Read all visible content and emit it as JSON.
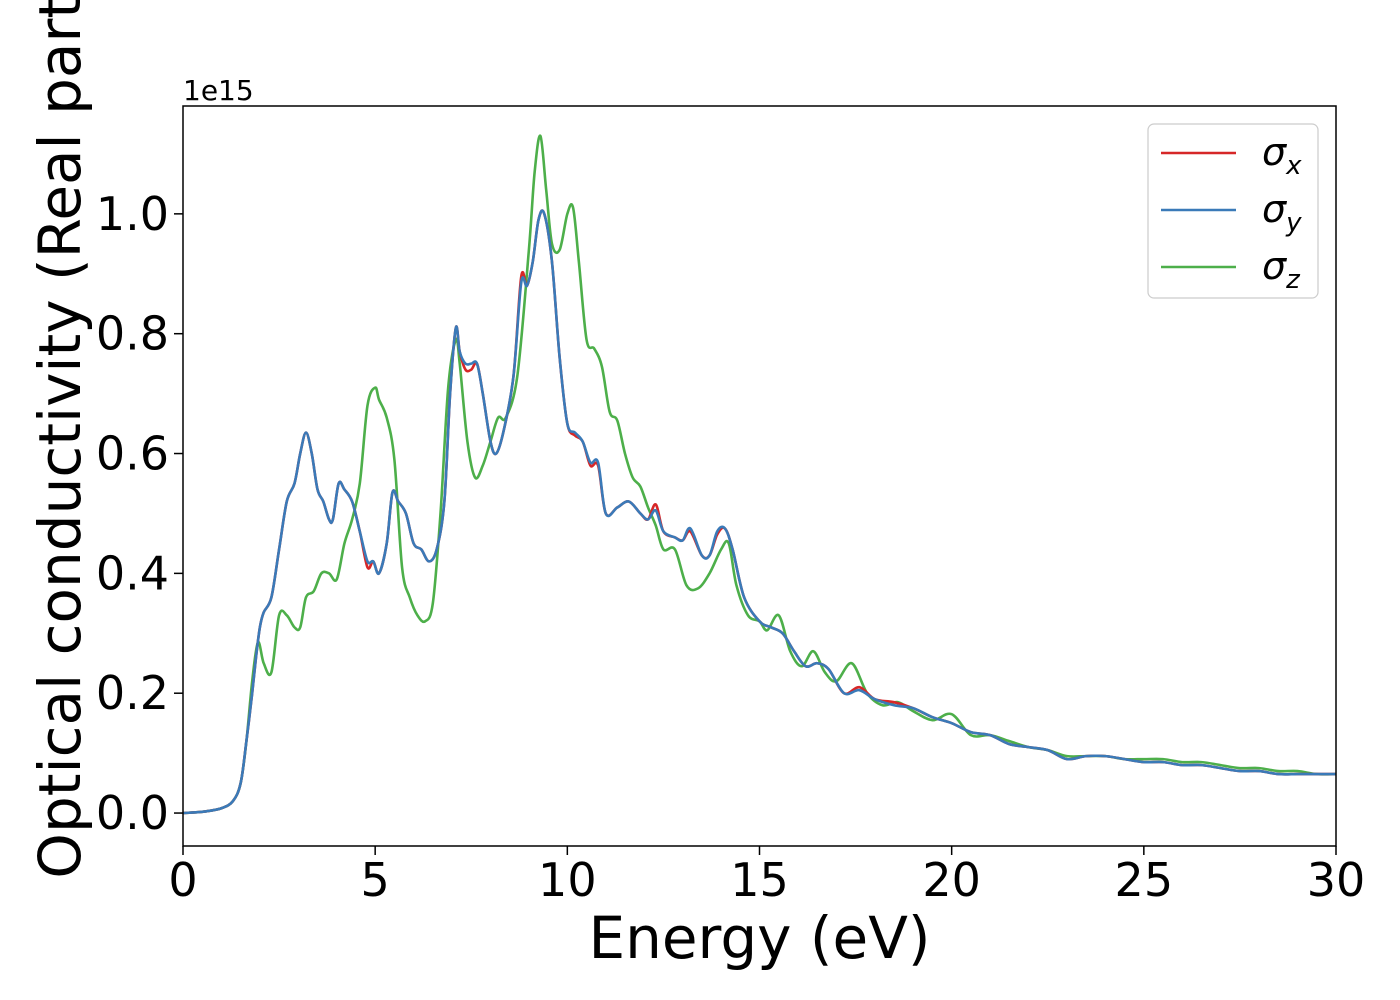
{
  "chart_data": {
    "type": "line",
    "title": "",
    "xlabel": "Energy (eV)",
    "ylabel": "Optical conductivity (Real part)",
    "y_offset_label": "1e15",
    "y_scale_factor": 1000000000000000.0,
    "xlim": [
      0,
      30
    ],
    "ylim": [
      -0.055,
      1.18
    ],
    "xticks": [
      0,
      5,
      10,
      15,
      20,
      25,
      30
    ],
    "xtick_labels": [
      "0",
      "5",
      "10",
      "15",
      "20",
      "25",
      "30"
    ],
    "yticks": [
      0.0,
      0.2,
      0.4,
      0.6,
      0.8,
      1.0
    ],
    "ytick_labels": [
      "0.0",
      "0.2",
      "0.4",
      "0.6",
      "0.8",
      "1.0"
    ],
    "grid": false,
    "legend_position": "top-right",
    "series": [
      {
        "name": "σx",
        "symbol": "σ",
        "subscript": "x",
        "color": "#d62728",
        "x": [
          0,
          0.5,
          1.0,
          1.3,
          1.5,
          1.65,
          1.8,
          1.9,
          2.0,
          2.1,
          2.3,
          2.5,
          2.7,
          2.9,
          3.05,
          3.2,
          3.35,
          3.5,
          3.65,
          3.8,
          3.9,
          4.05,
          4.2,
          4.4,
          4.6,
          4.8,
          4.95,
          5.1,
          5.3,
          5.45,
          5.6,
          5.8,
          6.0,
          6.2,
          6.4,
          6.6,
          6.8,
          6.95,
          7.1,
          7.2,
          7.35,
          7.5,
          7.65,
          7.8,
          8.0,
          8.15,
          8.35,
          8.6,
          8.8,
          8.95,
          9.1,
          9.25,
          9.4,
          9.6,
          9.8,
          10.0,
          10.2,
          10.4,
          10.6,
          10.8,
          11.0,
          11.3,
          11.6,
          11.9,
          12.1,
          12.3,
          12.5,
          12.8,
          13.0,
          13.2,
          13.5,
          13.7,
          13.9,
          14.1,
          14.3,
          14.6,
          15.0,
          15.3,
          15.6,
          15.9,
          16.2,
          16.5,
          16.8,
          17.2,
          17.6,
          18.0,
          18.5,
          19.0,
          19.5,
          20.0,
          20.5,
          21.0,
          21.5,
          22.0,
          22.5,
          23.0,
          23.5,
          24.0,
          24.5,
          25.0,
          25.5,
          26.0,
          26.5,
          27.0,
          27.5,
          28.0,
          28.5,
          29.0,
          29.5,
          30.0
        ],
        "y": [
          0.0,
          0.002,
          0.008,
          0.02,
          0.05,
          0.12,
          0.2,
          0.26,
          0.31,
          0.335,
          0.36,
          0.44,
          0.52,
          0.55,
          0.6,
          0.635,
          0.6,
          0.54,
          0.52,
          0.49,
          0.49,
          0.55,
          0.54,
          0.52,
          0.47,
          0.41,
          0.42,
          0.4,
          0.45,
          0.535,
          0.52,
          0.5,
          0.45,
          0.44,
          0.42,
          0.44,
          0.52,
          0.7,
          0.81,
          0.77,
          0.74,
          0.74,
          0.75,
          0.7,
          0.62,
          0.6,
          0.64,
          0.73,
          0.895,
          0.88,
          0.92,
          0.99,
          1.0,
          0.92,
          0.76,
          0.65,
          0.63,
          0.62,
          0.58,
          0.58,
          0.5,
          0.51,
          0.52,
          0.5,
          0.49,
          0.515,
          0.47,
          0.46,
          0.455,
          0.47,
          0.43,
          0.43,
          0.465,
          0.475,
          0.44,
          0.36,
          0.32,
          0.31,
          0.3,
          0.27,
          0.245,
          0.25,
          0.24,
          0.2,
          0.21,
          0.19,
          0.185,
          0.175,
          0.16,
          0.15,
          0.135,
          0.13,
          0.115,
          0.11,
          0.105,
          0.09,
          0.095,
          0.095,
          0.09,
          0.085,
          0.085,
          0.08,
          0.08,
          0.075,
          0.07,
          0.07,
          0.065,
          0.065,
          0.065,
          0.065
        ]
      },
      {
        "name": "σy",
        "symbol": "σ",
        "subscript": "y",
        "color": "#3a7ab8",
        "x": [
          0,
          0.5,
          1.0,
          1.3,
          1.5,
          1.65,
          1.8,
          1.9,
          2.0,
          2.1,
          2.3,
          2.5,
          2.7,
          2.9,
          3.05,
          3.2,
          3.35,
          3.5,
          3.65,
          3.8,
          3.9,
          4.05,
          4.2,
          4.4,
          4.6,
          4.8,
          4.95,
          5.1,
          5.3,
          5.45,
          5.6,
          5.8,
          6.0,
          6.2,
          6.4,
          6.6,
          6.8,
          6.95,
          7.1,
          7.2,
          7.35,
          7.5,
          7.65,
          7.8,
          8.0,
          8.15,
          8.35,
          8.6,
          8.8,
          8.95,
          9.1,
          9.25,
          9.4,
          9.6,
          9.8,
          10.0,
          10.2,
          10.4,
          10.6,
          10.8,
          11.0,
          11.3,
          11.6,
          11.9,
          12.1,
          12.3,
          12.5,
          12.8,
          13.0,
          13.2,
          13.5,
          13.7,
          13.9,
          14.1,
          14.3,
          14.6,
          15.0,
          15.3,
          15.6,
          15.9,
          16.2,
          16.5,
          16.8,
          17.2,
          17.6,
          18.0,
          18.5,
          19.0,
          19.5,
          20.0,
          20.5,
          21.0,
          21.5,
          22.0,
          22.5,
          23.0,
          23.5,
          24.0,
          24.5,
          25.0,
          25.5,
          26.0,
          26.5,
          27.0,
          27.5,
          28.0,
          28.5,
          29.0,
          29.5,
          30.0
        ],
        "y": [
          0.0,
          0.002,
          0.008,
          0.02,
          0.05,
          0.12,
          0.2,
          0.26,
          0.31,
          0.335,
          0.36,
          0.44,
          0.52,
          0.55,
          0.6,
          0.635,
          0.6,
          0.54,
          0.52,
          0.49,
          0.49,
          0.55,
          0.54,
          0.52,
          0.47,
          0.42,
          0.42,
          0.4,
          0.45,
          0.535,
          0.52,
          0.5,
          0.45,
          0.44,
          0.42,
          0.44,
          0.52,
          0.7,
          0.81,
          0.77,
          0.75,
          0.75,
          0.75,
          0.7,
          0.62,
          0.6,
          0.64,
          0.73,
          0.885,
          0.88,
          0.92,
          0.99,
          1.0,
          0.92,
          0.76,
          0.65,
          0.635,
          0.62,
          0.585,
          0.585,
          0.5,
          0.51,
          0.52,
          0.5,
          0.49,
          0.505,
          0.47,
          0.46,
          0.455,
          0.475,
          0.43,
          0.43,
          0.47,
          0.475,
          0.44,
          0.36,
          0.32,
          0.31,
          0.3,
          0.27,
          0.245,
          0.25,
          0.24,
          0.2,
          0.205,
          0.19,
          0.18,
          0.175,
          0.16,
          0.15,
          0.135,
          0.13,
          0.115,
          0.11,
          0.105,
          0.09,
          0.095,
          0.095,
          0.09,
          0.085,
          0.085,
          0.08,
          0.08,
          0.075,
          0.07,
          0.07,
          0.065,
          0.065,
          0.065,
          0.065
        ]
      },
      {
        "name": "σz",
        "symbol": "σ",
        "subscript": "z",
        "color": "#4daf4a",
        "x": [
          0,
          0.5,
          1.0,
          1.3,
          1.5,
          1.65,
          1.8,
          1.95,
          2.1,
          2.3,
          2.5,
          2.7,
          2.9,
          3.05,
          3.2,
          3.4,
          3.6,
          3.8,
          4.0,
          4.2,
          4.4,
          4.6,
          4.8,
          5.0,
          5.1,
          5.3,
          5.5,
          5.7,
          5.9,
          6.1,
          6.3,
          6.5,
          6.7,
          6.9,
          7.1,
          7.2,
          7.4,
          7.6,
          7.8,
          8.0,
          8.2,
          8.4,
          8.7,
          9.0,
          9.15,
          9.3,
          9.45,
          9.6,
          9.8,
          10.0,
          10.15,
          10.3,
          10.5,
          10.7,
          10.9,
          11.1,
          11.3,
          11.5,
          11.7,
          11.9,
          12.1,
          12.3,
          12.5,
          12.8,
          13.1,
          13.4,
          13.7,
          14.0,
          14.2,
          14.4,
          14.7,
          15.0,
          15.2,
          15.5,
          15.8,
          16.1,
          16.4,
          16.7,
          17.0,
          17.4,
          17.8,
          18.2,
          18.6,
          19.0,
          19.5,
          20.0,
          20.5,
          21.0,
          21.5,
          22.0,
          22.5,
          23.0,
          23.5,
          24.0,
          24.5,
          25.0,
          25.5,
          26.0,
          26.5,
          27.0,
          27.5,
          28.0,
          28.5,
          29.0,
          29.5,
          30.0
        ],
        "y": [
          0.0,
          0.002,
          0.008,
          0.02,
          0.05,
          0.12,
          0.22,
          0.285,
          0.25,
          0.235,
          0.33,
          0.33,
          0.31,
          0.31,
          0.36,
          0.37,
          0.4,
          0.4,
          0.39,
          0.45,
          0.49,
          0.55,
          0.68,
          0.71,
          0.69,
          0.66,
          0.59,
          0.41,
          0.36,
          0.33,
          0.32,
          0.35,
          0.5,
          0.71,
          0.79,
          0.75,
          0.62,
          0.56,
          0.58,
          0.62,
          0.66,
          0.66,
          0.73,
          0.94,
          1.07,
          1.13,
          1.04,
          0.95,
          0.94,
          1.0,
          1.01,
          0.92,
          0.79,
          0.775,
          0.745,
          0.67,
          0.655,
          0.6,
          0.56,
          0.545,
          0.51,
          0.48,
          0.44,
          0.44,
          0.38,
          0.375,
          0.4,
          0.44,
          0.45,
          0.38,
          0.33,
          0.32,
          0.305,
          0.33,
          0.27,
          0.245,
          0.27,
          0.235,
          0.22,
          0.25,
          0.2,
          0.18,
          0.185,
          0.17,
          0.155,
          0.165,
          0.13,
          0.13,
          0.12,
          0.11,
          0.105,
          0.095,
          0.095,
          0.095,
          0.09,
          0.09,
          0.09,
          0.085,
          0.085,
          0.08,
          0.075,
          0.075,
          0.07,
          0.07,
          0.065,
          0.065
        ]
      }
    ]
  }
}
